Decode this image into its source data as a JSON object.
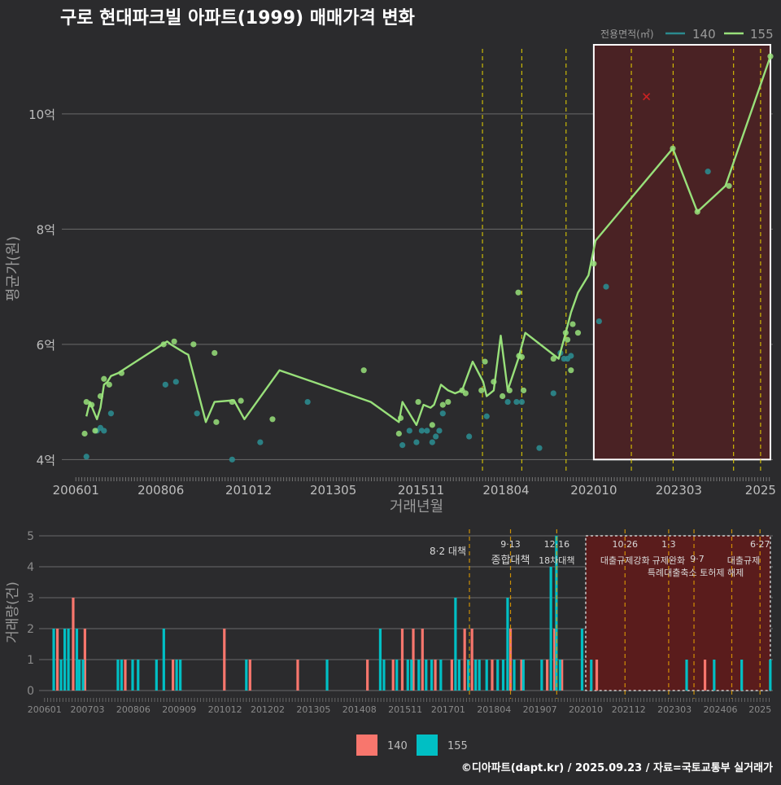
{
  "title": "구로 현대파크빌 아파트(1999) 매매가격 변화",
  "credit": "©디아파트(dapt.kr) / 2025.09.23 / 자료=국토교통부 실거래가",
  "colors": {
    "background": "#2b2b2d",
    "panel": "#2b2b2d",
    "grid": "#6a6a6a",
    "series140": "#f8766d",
    "series155": "#00bfc4",
    "line140": "#2b8a8e",
    "line155": "#98e07a",
    "policy": "#e6d200",
    "regionFill": "#4a2224",
    "regionFillBottom": "#5a1c1c",
    "highlight": "#ffffff",
    "xmark": "#cc2222",
    "text": "#e8e8e8",
    "axisText": "#bdbdbd",
    "mutedText": "#8a8a8a"
  },
  "chart_data": [
    {
      "type": "line",
      "title": "구로 현대파크빌 아파트(1999) 매매가격 변화",
      "xlabel": "거래년월",
      "ylabel": "평균가(원)",
      "x_tick_labels": [
        "200601",
        "200806",
        "201012",
        "201305",
        "201511",
        "201804",
        "202010",
        "202303",
        "2025"
      ],
      "x_tick_t": [
        2006.0,
        2008.42,
        2010.92,
        2013.33,
        2015.83,
        2018.25,
        2020.75,
        2023.17,
        2025.5
      ],
      "xlim": [
        2005.6,
        2025.85
      ],
      "ylim": [
        3.75,
        11.2
      ],
      "y_ticks": [
        4,
        6,
        8,
        10
      ],
      "y_tick_labels": [
        "4억",
        "6억",
        "8억",
        "10억"
      ],
      "legend_title": "전용면적(㎡)",
      "legend": [
        "140",
        "155"
      ],
      "legend_position": "top-right",
      "highlight_range": [
        2020.75,
        2025.78
      ],
      "highlight_y": [
        4.0,
        11.2
      ],
      "x_marker": {
        "t": 2022.25,
        "y": 10.3
      },
      "policy_dates": [
        2017.58,
        2018.7,
        2019.96,
        2021.82,
        2023.01,
        2024.73,
        2025.5
      ],
      "series": [
        {
          "name": "155",
          "line_t": [
            2006.3,
            2006.4,
            2006.5,
            2006.6,
            2006.7,
            2006.8,
            2006.9,
            2007.0,
            2007.2,
            2008.6,
            2008.7,
            2009.1,
            2009.2,
            2009.7,
            2009.95,
            2010.5,
            2010.8,
            2011.8,
            2014.4,
            2015.2,
            2015.3,
            2015.7,
            2015.9,
            2016.1,
            2016.2,
            2016.4,
            2016.6,
            2016.8,
            2017.0,
            2017.3,
            2017.6,
            2017.7,
            2017.9,
            2018.1,
            2018.3,
            2018.6,
            2018.8,
            2019.75,
            2019.95,
            2020.1,
            2020.3,
            2020.6,
            2020.8,
            2023.0,
            2023.7,
            2024.5,
            2025.78
          ],
          "line_y": [
            4.75,
            5.0,
            4.85,
            4.7,
            4.9,
            5.3,
            5.35,
            5.45,
            5.5,
            6.05,
            6.0,
            5.85,
            5.82,
            4.65,
            5.0,
            5.03,
            4.7,
            5.55,
            5.0,
            4.65,
            5.0,
            4.6,
            4.95,
            4.9,
            4.95,
            5.3,
            5.2,
            5.15,
            5.2,
            5.7,
            5.35,
            5.1,
            5.2,
            6.15,
            5.2,
            5.75,
            6.2,
            5.75,
            6.2,
            6.55,
            6.9,
            7.2,
            7.8,
            9.4,
            8.3,
            8.75,
            11.0
          ],
          "points_t": [
            2006.25,
            2006.3,
            2006.45,
            2006.55,
            2006.7,
            2006.8,
            2006.95,
            2007.3,
            2008.5,
            2008.8,
            2009.35,
            2009.95,
            2010.0,
            2010.45,
            2010.7,
            2011.6,
            2014.2,
            2015.2,
            2015.25,
            2015.75,
            2016.15,
            2016.45,
            2016.6,
            2017.0,
            2017.1,
            2017.55,
            2017.65,
            2017.9,
            2018.15,
            2018.35,
            2018.6,
            2018.62,
            2018.7,
            2018.75,
            2019.6,
            2019.95,
            2020.0,
            2020.1,
            2020.15,
            2020.3,
            2020.75,
            2023.0,
            2023.7,
            2024.6,
            2025.78
          ],
          "points_y": [
            4.45,
            5.0,
            4.95,
            4.5,
            5.1,
            5.4,
            5.3,
            5.5,
            6.0,
            6.05,
            6.0,
            5.85,
            4.65,
            5.0,
            5.02,
            4.7,
            5.55,
            4.45,
            4.72,
            5.0,
            4.6,
            4.95,
            5.0,
            5.2,
            5.15,
            5.2,
            5.7,
            5.35,
            5.1,
            5.2,
            6.9,
            5.8,
            5.78,
            5.2,
            5.75,
            6.2,
            6.08,
            5.55,
            6.35,
            6.2,
            7.4,
            9.4,
            8.3,
            8.75,
            11.0
          ]
        },
        {
          "name": "140",
          "line_t": [],
          "line_y": [],
          "points_t": [
            2006.3,
            2006.6,
            2006.7,
            2006.8,
            2007.0,
            2008.55,
            2008.85,
            2009.45,
            2010.45,
            2011.25,
            2012.6,
            2015.3,
            2015.5,
            2015.7,
            2015.85,
            2016.0,
            2016.15,
            2016.25,
            2016.35,
            2016.45,
            2017.2,
            2017.7,
            2018.3,
            2018.55,
            2018.7,
            2019.2,
            2019.6,
            2019.8,
            2019.9,
            2020.0,
            2020.1,
            2020.9,
            2021.1,
            2024.0
          ],
          "points_y": [
            4.05,
            4.5,
            4.55,
            4.5,
            4.8,
            5.3,
            5.35,
            4.8,
            4.0,
            4.3,
            5.0,
            4.25,
            4.5,
            4.3,
            4.5,
            4.5,
            4.3,
            4.4,
            4.5,
            4.8,
            4.4,
            4.75,
            5.0,
            5.0,
            5.0,
            4.2,
            5.15,
            5.85,
            5.75,
            5.75,
            5.8,
            6.4,
            7.0,
            9.0
          ]
        }
      ]
    },
    {
      "type": "bar",
      "ylabel": "거래량(건)",
      "ylim": [
        0,
        5
      ],
      "y_ticks": [
        0,
        1,
        2,
        3,
        4,
        5
      ],
      "x_tick_labels": [
        "200601",
        "200703",
        "200806",
        "200909",
        "201012",
        "201202",
        "201305",
        "201408",
        "201511",
        "201701",
        "201804",
        "201907",
        "202010",
        "202112",
        "202303",
        "202406",
        "2025"
      ],
      "x_tick_t": [
        2006.0,
        2007.17,
        2008.42,
        2009.67,
        2010.92,
        2012.08,
        2013.33,
        2014.58,
        2015.83,
        2017.0,
        2018.25,
        2019.5,
        2020.75,
        2021.92,
        2023.17,
        2024.42,
        2025.5
      ],
      "xlim": [
        2005.85,
        2025.85
      ],
      "legend": [
        "140",
        "155"
      ],
      "legend_position": "bottom",
      "highlight_range": [
        2020.75,
        2025.78
      ],
      "policies": [
        {
          "t": 2017.58,
          "date": "8·2",
          "label": "대책"
        },
        {
          "t": 2018.7,
          "date": "9·13",
          "label": "종합대책"
        },
        {
          "t": 2019.96,
          "date": "12·16",
          "label": "18차대책"
        },
        {
          "t": 2021.82,
          "date": "10·26",
          "label": "대출규제강화"
        },
        {
          "t": 2023.01,
          "date": "1·3",
          "label": "규제완화"
        },
        {
          "t": 2023.7,
          "date": "9·7",
          "label": "특례대출축소 토허제 해제"
        },
        {
          "t": 2024.73,
          "date": "",
          "label": ""
        },
        {
          "t": 2025.5,
          "date": "6·27",
          "label": "대출규제"
        }
      ],
      "series": [
        {
          "name": "140",
          "t": [
            2006.35,
            2006.78,
            2007.1,
            2008.2,
            2009.5,
            2010.9,
            2011.6,
            2012.9,
            2014.8,
            2015.5,
            2015.75,
            2016.05,
            2016.3,
            2016.65,
            2017.1,
            2017.45,
            2017.65,
            2018.2,
            2018.7,
            2019.0,
            2019.7,
            2019.9,
            2020.1,
            2021.05,
            2024.0
          ],
          "v": [
            2,
            3,
            2,
            1,
            1,
            2,
            1,
            1,
            1,
            1,
            2,
            2,
            2,
            1,
            1,
            2,
            2,
            1,
            2,
            1,
            1,
            2,
            1,
            1,
            1
          ]
        },
        {
          "name": "155",
          "t": [
            2006.25,
            2006.45,
            2006.55,
            2006.65,
            2006.88,
            2006.95,
            2007.05,
            2008.0,
            2008.1,
            2008.4,
            2008.55,
            2009.05,
            2009.25,
            2009.6,
            2009.7,
            2011.5,
            2013.7,
            2015.15,
            2015.25,
            2015.6,
            2015.9,
            2016.0,
            2016.2,
            2016.4,
            2016.55,
            2016.8,
            2017.2,
            2017.3,
            2017.55,
            2017.75,
            2017.85,
            2018.05,
            2018.35,
            2018.5,
            2018.62,
            2018.8,
            2019.05,
            2019.55,
            2019.8,
            2019.95,
            2020.05,
            2020.65,
            2020.9,
            2023.5,
            2024.25,
            2025.0,
            2025.78
          ],
          "v": [
            2,
            1,
            2,
            2,
            2,
            1,
            1,
            1,
            1,
            1,
            1,
            1,
            2,
            1,
            1,
            1,
            1,
            2,
            1,
            1,
            1,
            1,
            1,
            1,
            1,
            1,
            3,
            1,
            1,
            1,
            1,
            1,
            1,
            1,
            3,
            1,
            1,
            1,
            4,
            5,
            1,
            2,
            1,
            1,
            1,
            1,
            1
          ]
        }
      ]
    }
  ]
}
